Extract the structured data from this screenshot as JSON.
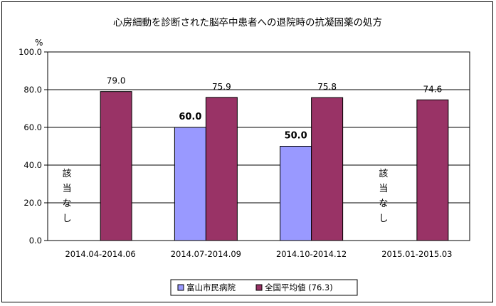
{
  "chart_data": {
    "type": "bar",
    "title": "心房細動を診断された脳卒中患者への退院時の抗凝固薬の処方",
    "ylabel": "%",
    "xlabel": "",
    "ylim": [
      0,
      100
    ],
    "ytick_step": 20,
    "y_tick_labels": [
      "0.0",
      "20.0",
      "40.0",
      "60.0",
      "80.0",
      "100.0"
    ],
    "grid": true,
    "legend_position": "bottom",
    "categories": [
      "2014.04-2014.06",
      "2014.07-2014.09",
      "2014.10-2014.12",
      "2015.01-2015.03"
    ],
    "series": [
      {
        "name": "富山市民病院",
        "color": "#9999ff",
        "values": [
          null,
          60.0,
          50.0,
          null
        ],
        "labels": [
          "",
          "60.0",
          "50.0",
          ""
        ],
        "na_text": [
          "該当なし",
          "",
          "",
          "該当なし"
        ]
      },
      {
        "name": "全国平均値 (76.3)",
        "color": "#993366",
        "values": [
          79.0,
          75.9,
          75.8,
          74.6
        ],
        "labels": [
          "79.0",
          "75.9",
          "75.8",
          "74.6"
        ]
      }
    ]
  }
}
